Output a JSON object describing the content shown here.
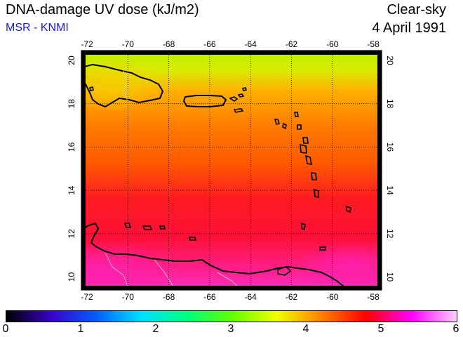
{
  "header": {
    "title": "DNA-damage UV dose (kJ/m2)",
    "organization": "MSR - KNMI",
    "condition": "Clear-sky",
    "date": "4 April 1991"
  },
  "map": {
    "longitude_ticks": [
      "-72",
      "-70",
      "-68",
      "-66",
      "-64",
      "-62",
      "-60",
      "-58"
    ],
    "latitude_ticks": [
      "20",
      "18",
      "16",
      "14",
      "12",
      "10"
    ],
    "grid": true,
    "region": "Caribbean Sea / Lesser Antilles",
    "colors": {
      "north_band": "#a8f000",
      "central_band": "#ff6a00",
      "south_band": "#ff1530",
      "coastal_south": "#ff2aa8"
    }
  },
  "colorbar": {
    "labels": [
      "0",
      "1",
      "2",
      "3",
      "4",
      "5",
      "6"
    ],
    "gradient_stops": [
      "#000000",
      "#3a00c8",
      "#0060ff",
      "#00e0ff",
      "#00ff80",
      "#60ff00",
      "#f0ff00",
      "#ff8000",
      "#ff0000",
      "#ff00ff",
      "#ffd0ff"
    ]
  }
}
